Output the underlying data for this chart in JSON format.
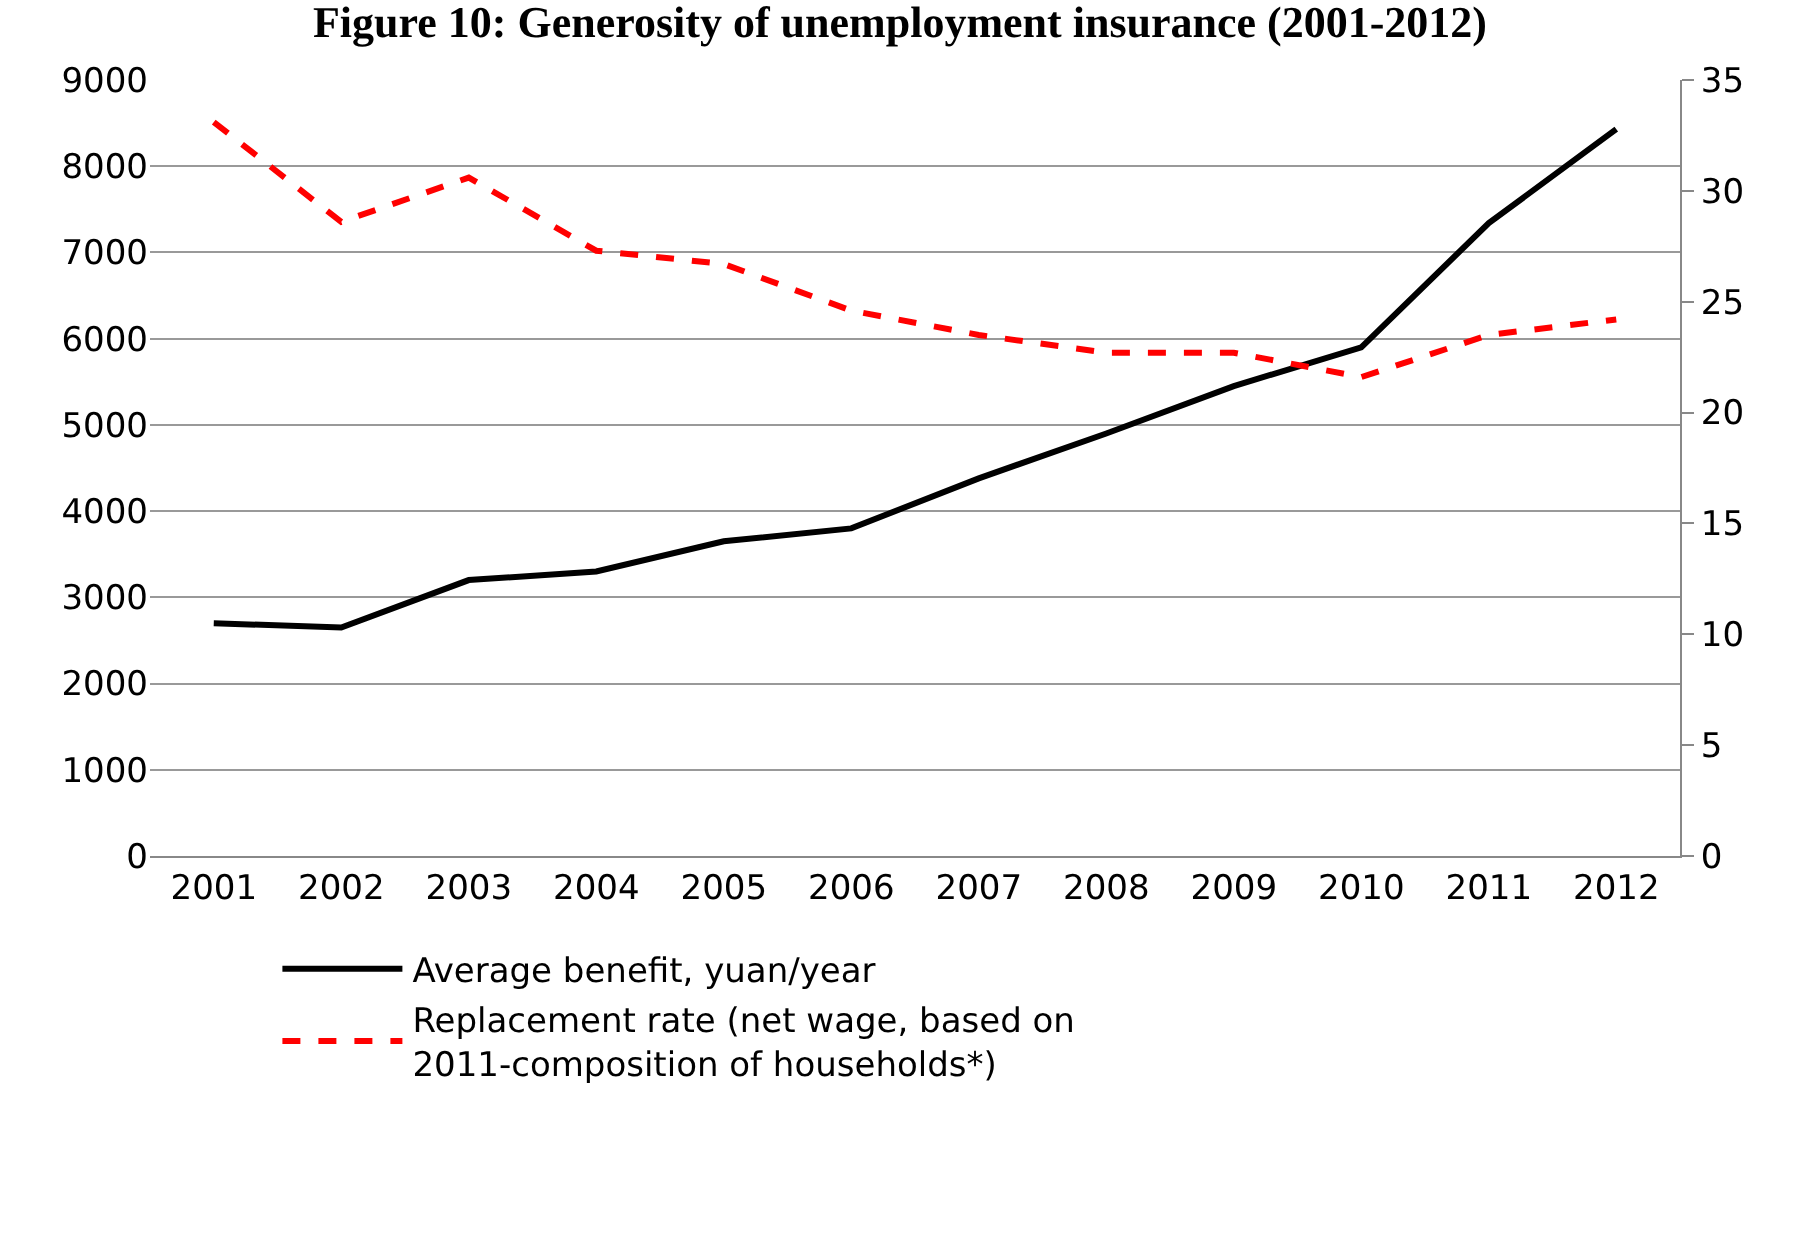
{
  "chart_data": {
    "type": "line",
    "title": "Figure 10: Generosity of unemployment insurance (2001-2012)",
    "categories": [
      "2001",
      "2002",
      "2003",
      "2004",
      "2005",
      "2006",
      "2007",
      "2008",
      "2009",
      "2010",
      "2011",
      "2012"
    ],
    "series": [
      {
        "name": "Average benefit, yuan/year",
        "color": "#000000",
        "line_style": "solid",
        "values": [
          2700,
          2650,
          3200,
          3300,
          3650,
          3800,
          4380,
          4900,
          5450,
          5900,
          7340,
          8430
        ]
      },
      {
        "name": "Replacement rate (net wage, based on 2011-composition of households*)",
        "color": "#ff0000",
        "line_style": "dashed",
        "axis": "y2",
        "values": [
          33.1,
          28.6,
          30.6,
          27.3,
          26.7,
          24.6,
          23.5,
          22.7,
          22.7,
          21.6,
          23.5,
          24.2
        ]
      }
    ],
    "ylim": [
      0,
      9000
    ],
    "yticks": [
      0,
      1000,
      2000,
      3000,
      4000,
      5000,
      6000,
      7000,
      8000,
      9000
    ],
    "y2lim": [
      0,
      35
    ],
    "y2ticks": [
      0,
      5,
      10,
      15,
      20,
      25,
      30,
      35
    ],
    "grid": "y",
    "legend": "bottom",
    "marker": "none"
  }
}
